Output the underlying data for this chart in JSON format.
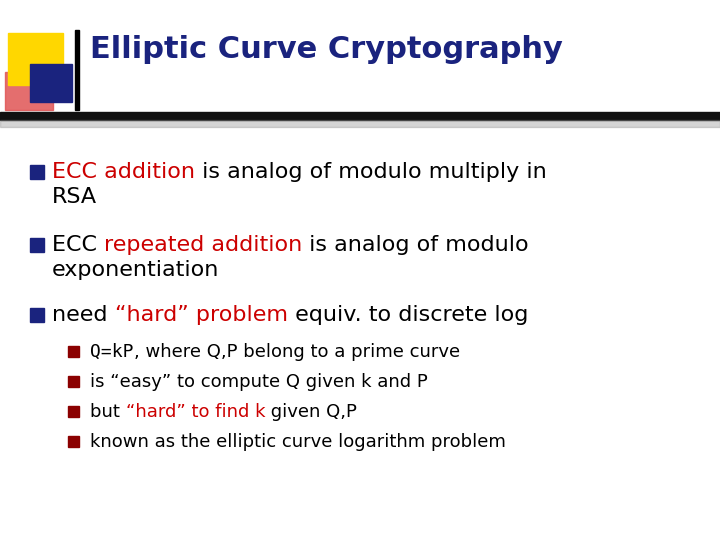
{
  "title": "Elliptic Curve Cryptography",
  "title_color": "#1a237e",
  "bg_color": "#ffffff",
  "bullet_marker_color": "#1a237e",
  "sub_bullet_marker_color": "#8b0000",
  "title_fontsize": 22,
  "bullet_fontsize": 16,
  "sub_fontsize": 13,
  "bullets": [
    [
      {
        "text": "ECC addition",
        "color": "#cc0000"
      },
      {
        "text": " is analog of modulo multiply in",
        "color": "#000000"
      }
    ],
    [
      {
        "text": "ECC ",
        "color": "#000000"
      },
      {
        "text": "repeated addition",
        "color": "#cc0000"
      },
      {
        "text": " is analog of modulo",
        "color": "#000000"
      }
    ],
    [
      {
        "text": "need ",
        "color": "#000000"
      },
      {
        "text": "“hard” problem",
        "color": "#cc0000"
      },
      {
        "text": " equiv. to discrete log",
        "color": "#000000"
      }
    ]
  ],
  "bullet_line2": [
    "RSA",
    "exponentiation",
    ""
  ],
  "sub_bullets": [
    [
      {
        "text": "Q=kP",
        "color": "#000000",
        "mono": true
      },
      {
        "text": ", where Q,P belong to a prime curve",
        "color": "#000000",
        "mono": false
      }
    ],
    [
      {
        "text": "is “easy” to compute Q given k and P",
        "color": "#000000",
        "mono": false
      }
    ],
    [
      {
        "text": "but ",
        "color": "#000000",
        "mono": false
      },
      {
        "text": "“hard” to find k",
        "color": "#cc0000",
        "mono": false
      },
      {
        "text": " given Q,P",
        "color": "#000000",
        "mono": false
      }
    ],
    [
      {
        "text": "known as the elliptic curve logarithm problem",
        "color": "#000000",
        "mono": false
      }
    ]
  ]
}
